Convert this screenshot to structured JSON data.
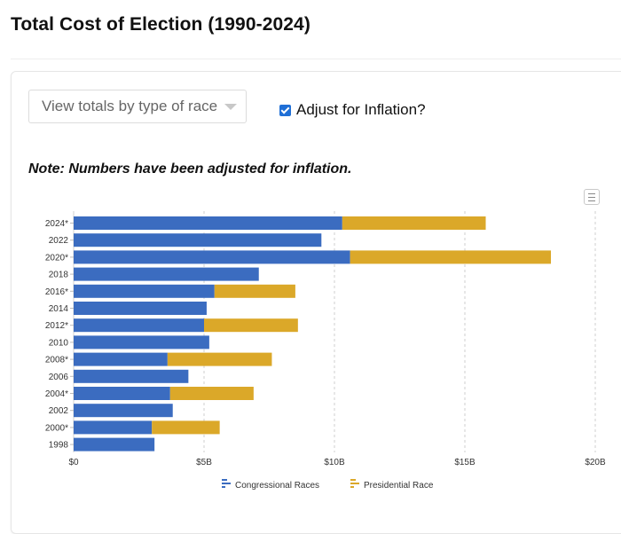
{
  "page": {
    "title": "Total Cost of Election (1990-2024)"
  },
  "controls": {
    "dropdown_value": "View totals by type of race",
    "inflation_label": "Adjust for Inflation?",
    "inflation_checked": true
  },
  "note": "Note: Numbers have been adjusted for inflation.",
  "chart_data": {
    "type": "bar",
    "orientation": "horizontal",
    "stacked": true,
    "categories": [
      "2024*",
      "2022",
      "2020*",
      "2018",
      "2016*",
      "2014",
      "2012*",
      "2010",
      "2008*",
      "2006",
      "2004*",
      "2002",
      "2000*",
      "1998"
    ],
    "series": [
      {
        "name": "Congressional Races",
        "color": "#3b6cc0",
        "values": [
          10.3,
          9.5,
          10.6,
          7.1,
          5.4,
          5.1,
          5.0,
          5.2,
          3.6,
          4.4,
          3.7,
          3.8,
          3.0,
          3.1
        ]
      },
      {
        "name": "Presidential Race",
        "color": "#dba829",
        "values": [
          5.5,
          0,
          7.7,
          0,
          3.1,
          0,
          3.6,
          0,
          4.0,
          0,
          3.2,
          0,
          2.6,
          0
        ]
      }
    ],
    "xlim": [
      0,
      20
    ],
    "x_ticks": [
      0,
      5,
      10,
      15,
      20
    ],
    "x_tick_labels": [
      "$0",
      "$5B",
      "$10B",
      "$15B",
      "$20B"
    ],
    "value_unit": "billions USD (inflation-adjusted)",
    "grid": "vertical dashed",
    "legend": "bottom-center",
    "title": "",
    "xlabel": "",
    "ylabel": ""
  }
}
